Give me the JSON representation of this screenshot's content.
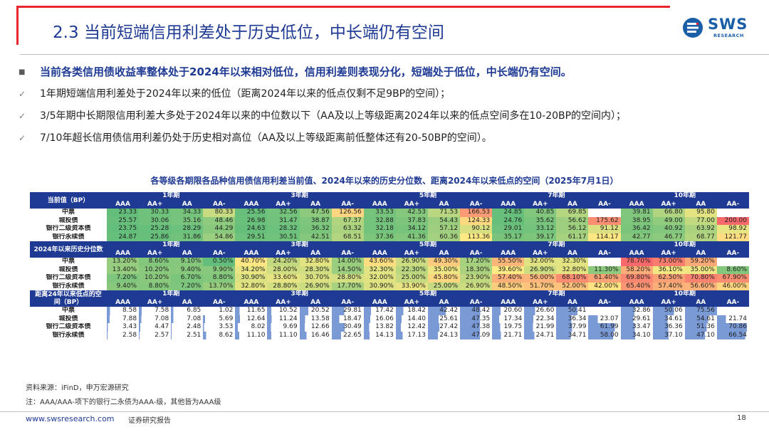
{
  "slide": {
    "title": "2.3 当前短端信用利差处于历史低位，中长端仍有空间",
    "logo_text": "SWS",
    "logo_subtext": "RESEARCH"
  },
  "bullets": [
    {
      "marker": "■",
      "text": "当前各类信用债收益率整体处于2024年以来相对低位，信用利差则表现分化，短端处于低位，中长端仍有空间。"
    },
    {
      "marker": "✓",
      "text": "1年期短端信用利差处于2024年以来的低位（距离2024年以来的低点仅剩不足9BP的空间）；"
    },
    {
      "marker": "✓",
      "text": "3/5年期中长期限信用利差大多处于2024年以来的中位数以下（AA及以上等级距离2024年以来的低点空间多在10-20BP的空间内）；"
    },
    {
      "marker": "✓",
      "text": "7/10年超长信用债信用利差仍处于历史相对高位（AA及以上等级距离前低整体还有20-50BP的空间）。"
    }
  ],
  "table": {
    "title": "各等级各期限各品种信用债信用利差当前值、2024年以来的历史分位数、距离2024年以来低点的空间（2025年7月1日）",
    "terms": [
      "1年期",
      "3年期",
      "5年期",
      "7年期",
      "10年期"
    ],
    "grades": [
      "AAA",
      "AA+",
      "AA",
      "AA-"
    ],
    "sections": [
      {
        "label": "当前值（BP）",
        "label_lines": [
          "当前值（BP）"
        ],
        "rows": [
          {
            "name": "中票",
            "values": [
              "23.33",
              "30.33",
              "34.33",
              "80.33",
              "25.56",
              "32.56",
              "47.56",
              "126.56",
              "33.53",
              "42.53",
              "71.53",
              "166.53",
              "24.85",
              "40.85",
              "69.85",
              "",
              "39.81",
              "66.80",
              "95.80",
              ""
            ]
          },
          {
            "name": "城投债",
            "values": [
              "25.57",
              "30.06",
              "35.16",
              "48.46",
              "26.98",
              "31.47",
              "38.87",
              "67.37",
              "32.88",
              "37.83",
              "54.43",
              "124.33",
              "24.76",
              "35.62",
              "56.62",
              "175.62",
              "38.95",
              "49.00",
              "77.00",
              "200.00"
            ]
          },
          {
            "name": "银行二级资本债",
            "values": [
              "23.75",
              "25.28",
              "28.29",
              "44.29",
              "24.63",
              "28.32",
              "36.32",
              "63.32",
              "32.18",
              "34.12",
              "57.12",
              "90.12",
              "29.01",
              "33.12",
              "56.12",
              "91.12",
              "36.42",
              "40.92",
              "63.92",
              "98.92"
            ]
          },
          {
            "name": "银行永续债",
            "values": [
              "24.87",
              "25.86",
              "31.86",
              "54.86",
              "29.51",
              "30.51",
              "42.51",
              "68.51",
              "37.36",
              "41.36",
              "60.36",
              "113.36",
              "35.17",
              "39.17",
              "61.17",
              "114.17",
              "42.77",
              "46.77",
              "68.77",
              "121.77"
            ]
          }
        ]
      },
      {
        "label": "2024年以来历史分位数",
        "label_lines": [
          "2024年以来历史分位数"
        ],
        "rows": [
          {
            "name": "中票",
            "values": [
              "13.20%",
              "8.60%",
              "9.10%",
              "0.50%",
              "40.70%",
              "24.20%",
              "32.80%",
              "14.00%",
              "43.60%",
              "26.90%",
              "49.30%",
              "17.20%",
              "55.50%",
              "32.00%",
              "32.30%",
              "",
              "78.70%",
              "73.00%",
              "59.20%",
              ""
            ]
          },
          {
            "name": "城投债",
            "values": [
              "13.40%",
              "10.20%",
              "9.40%",
              "9.90%",
              "34.20%",
              "28.00%",
              "28.30%",
              "14.50%",
              "32.30%",
              "22.30%",
              "35.00%",
              "18.30%",
              "39.60%",
              "26.90%",
              "32.80%",
              "11.30%",
              "58.20%",
              "36.10%",
              "35.00%",
              "8.60%"
            ]
          },
          {
            "name": "银行二级资本债",
            "values": [
              "7.20%",
              "10.20%",
              "6.70%",
              "8.80%",
              "30.90%",
              "33.60%",
              "30.70%",
              "28.80%",
              "32.00%",
              "25.00%",
              "45.80%",
              "23.90%",
              "57.40%",
              "56.00%",
              "68.10%",
              "61.40%",
              "69.80%",
              "62.50%",
              "70.80%",
              "67.90%"
            ]
          },
          {
            "name": "银行永续债",
            "values": [
              "9.40%",
              "8.80%",
              "7.20%",
              "13.70%",
              "32.80%",
              "28.80%",
              "26.90%",
              "17.70%",
              "30.90%",
              "33.90%",
              "25.00%",
              "26.90%",
              "48.50%",
              "51.70%",
              "52.00%",
              "42.00%",
              "65.40%",
              "57.40%",
              "56.60%",
              "46.00%"
            ]
          }
        ]
      },
      {
        "label": "距离24年以来低点的空间（BP）",
        "label_lines": [
          "距离24年以来低点的空",
          "间（BP）"
        ],
        "rows": [
          {
            "name": "中票",
            "values": [
              "8.58",
              "7.58",
              "6.85",
              "1.02",
              "11.65",
              "10.52",
              "20.52",
              "29.81",
              "17.42",
              "18.42",
              "42.42",
              "48.42",
              "20.60",
              "26.60",
              "50.41",
              "",
              "32.86",
              "50.06",
              "75.56",
              ""
            ]
          },
          {
            "name": "城投债",
            "values": [
              "7.88",
              "7.08",
              "7.08",
              "5.69",
              "12.64",
              "11.24",
              "13.58",
              "18.47",
              "16.06",
              "14.40",
              "25.61",
              "47.35",
              "17.34",
              "22.34",
              "36.34",
              "23.07",
              "29.61",
              "34.61",
              "54.61",
              "21.74"
            ]
          },
          {
            "name": "银行二级资本债",
            "values": [
              "3.43",
              "4.47",
              "2.48",
              "3.53",
              "8.02",
              "9.69",
              "12.66",
              "30.49",
              "13.82",
              "12.42",
              "27.42",
              "47.38",
              "19.75",
              "21.99",
              "37.99",
              "61.99",
              "33.47",
              "36.36",
              "51.36",
              "70.86"
            ]
          },
          {
            "name": "银行永续债",
            "values": [
              "2.58",
              "2.57",
              "2.51",
              "8.62",
              "11.10",
              "11.10",
              "16.46",
              "22.65",
              "14.13",
              "17.13",
              "24.13",
              "47.09",
              "21.71",
              "24.71",
              "34.71",
              "58.00",
              "34.10",
              "37.10",
              "47.10",
              "66.54"
            ]
          }
        ]
      }
    ]
  },
  "footnotes": {
    "source": "资料来源：iFinD，申万宏源研究",
    "note": "注：AAA/AAA-项下的银行二永债为AAA-级，其他皆为AAA级"
  },
  "footer": {
    "url": "www.swsresearch.com",
    "label": "证券研究报告",
    "page": "18"
  },
  "colors": {
    "title_blue": "#1f3a93",
    "accent_red": "#e8262b",
    "header_blue": "#1f3a93",
    "scale_low": "#63be7b",
    "scale_mid": "#ffeb84",
    "scale_high": "#f8696b",
    "bar_blue": "#7a9ad6"
  }
}
